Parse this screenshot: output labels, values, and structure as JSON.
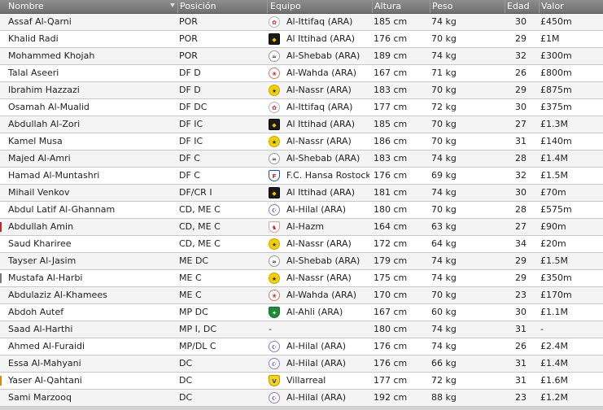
{
  "columns": {
    "name": "Nombre",
    "position": "Posición",
    "team": "Equipo",
    "height": "Altura",
    "weight": "Peso",
    "age": "Edad",
    "value": "Valor"
  },
  "club_badges": {
    "ittifaq": {
      "icon": "al-ittifaq-crest-icon",
      "bg": "#ffffff",
      "fg": "#d42020",
      "border": "#b5b5b5",
      "glyph": "✿",
      "shape": "round"
    },
    "ittihad": {
      "icon": "al-ittihad-crest-icon",
      "bg": "#1a1a1a",
      "fg": "#f2c200",
      "border": "#000000",
      "glyph": "◆",
      "shape": "square"
    },
    "shebab": {
      "icon": "al-shebab-crest-icon",
      "bg": "#ffffff",
      "fg": "#333333",
      "border": "#9a9a9a",
      "glyph": "≈",
      "shape": "round"
    },
    "wahda": {
      "icon": "al-wahda-crest-icon",
      "bg": "#ffffff",
      "fg": "#c0392b",
      "border": "#c97a7a",
      "glyph": "❀",
      "shape": "round"
    },
    "nassr": {
      "icon": "al-nassr-crest-icon",
      "bg": "#f5d000",
      "fg": "#1f3c88",
      "border": "#c9a800",
      "glyph": "★",
      "shape": "round"
    },
    "hansa": {
      "icon": "hansa-rostock-crest-icon",
      "bg": "#ffffff",
      "fg": "#c8102e",
      "border": "#1f4fa0",
      "glyph": "F",
      "shape": "shield"
    },
    "hilal": {
      "icon": "al-hilal-crest-icon",
      "bg": "#ffffff",
      "fg": "#5a3fa0",
      "border": "#8e7cc3",
      "glyph": "☪",
      "shape": "round"
    },
    "hazm": {
      "icon": "al-hazm-crest-icon",
      "bg": "#ffffff",
      "fg": "#d42020",
      "border": "#d9a0a0",
      "glyph": "♞",
      "shape": "shield"
    },
    "ahli": {
      "icon": "al-ahli-crest-icon",
      "bg": "#1f8a3a",
      "fg": "#ffffff",
      "border": "#146b2a",
      "glyph": "✦",
      "shape": "shield"
    },
    "villarreal": {
      "icon": "villarreal-crest-icon",
      "bg": "#f7d417",
      "fg": "#1d4fa0",
      "border": "#b59a00",
      "glyph": "V",
      "shape": "shield"
    }
  },
  "rows": [
    {
      "name": "Assaf Al-Qarni",
      "position": "POR",
      "team": "Al-Ittifaq (ARA)",
      "club": "ittifaq",
      "height": "185 cm",
      "weight": "74 kg",
      "age": "30",
      "value": "£450m",
      "marker": ""
    },
    {
      "name": "Khalid Radi",
      "position": "POR",
      "team": "Al Ittihad (ARA)",
      "club": "ittihad",
      "height": "176 cm",
      "weight": "70 kg",
      "age": "29",
      "value": "£1M",
      "marker": ""
    },
    {
      "name": "Mohammed Khojah",
      "position": "POR",
      "team": "Al-Shebab (ARA)",
      "club": "shebab",
      "height": "189 cm",
      "weight": "74 kg",
      "age": "32",
      "value": "£300m",
      "marker": ""
    },
    {
      "name": "Talal Aseeri",
      "position": "DF D",
      "team": "Al-Wahda (ARA)",
      "club": "wahda",
      "height": "167 cm",
      "weight": "71 kg",
      "age": "26",
      "value": "£800m",
      "marker": ""
    },
    {
      "name": "Ibrahim Hazzazi",
      "position": "DF D",
      "team": "Al-Nassr (ARA)",
      "club": "nassr",
      "height": "183 cm",
      "weight": "70 kg",
      "age": "29",
      "value": "£875m",
      "marker": ""
    },
    {
      "name": "Osamah Al-Mualid",
      "position": "DF DC",
      "team": "Al-Ittifaq (ARA)",
      "club": "ittifaq",
      "height": "177 cm",
      "weight": "72 kg",
      "age": "30",
      "value": "£375m",
      "marker": ""
    },
    {
      "name": "Abdullah Al-Zori",
      "position": "DF IC",
      "team": "Al Ittihad (ARA)",
      "club": "ittihad",
      "height": "185 cm",
      "weight": "70 kg",
      "age": "27",
      "value": "£1.3M",
      "marker": ""
    },
    {
      "name": "Kamel Musa",
      "position": "DF IC",
      "team": "Al-Nassr (ARA)",
      "club": "nassr",
      "height": "186 cm",
      "weight": "70 kg",
      "age": "31",
      "value": "£140m",
      "marker": ""
    },
    {
      "name": "Majed Al-Amri",
      "position": "DF C",
      "team": "Al-Shebab (ARA)",
      "club": "shebab",
      "height": "183 cm",
      "weight": "74 kg",
      "age": "28",
      "value": "£1.4M",
      "marker": ""
    },
    {
      "name": "Hamad Al-Muntashri",
      "position": "DF C",
      "team": "F.C. Hansa Rostock",
      "club": "hansa",
      "height": "176 cm",
      "weight": "69 kg",
      "age": "32",
      "value": "£1.5M",
      "marker": ""
    },
    {
      "name": "Mihail Venkov",
      "position": "DF/CR I",
      "team": "Al Ittihad (ARA)",
      "club": "ittihad",
      "height": "181 cm",
      "weight": "74 kg",
      "age": "30",
      "value": "£70m",
      "marker": ""
    },
    {
      "name": "Abdul Latif Al-Ghannam",
      "position": "CD, ME C",
      "team": "Al-Hilal (ARA)",
      "club": "hilal",
      "height": "180 cm",
      "weight": "70 kg",
      "age": "28",
      "value": "£575m",
      "marker": ""
    },
    {
      "name": "Abdullah Amin",
      "position": "CD, ME C",
      "team": "Al-Hazm",
      "club": "hazm",
      "height": "164 cm",
      "weight": "63 kg",
      "age": "27",
      "value": "£90m",
      "marker": "#cc2222"
    },
    {
      "name": "Saud Khariree",
      "position": "CD, ME C",
      "team": "Al-Nassr (ARA)",
      "club": "nassr",
      "height": "172 cm",
      "weight": "64 kg",
      "age": "34",
      "value": "£20m",
      "marker": ""
    },
    {
      "name": "Tayser Al-Jasim",
      "position": "ME DC",
      "team": "Al-Shebab (ARA)",
      "club": "shebab",
      "height": "179 cm",
      "weight": "74 kg",
      "age": "29",
      "value": "£1.5M",
      "marker": ""
    },
    {
      "name": "Mustafa Al-Harbi",
      "position": "ME C",
      "team": "Al-Nassr (ARA)",
      "club": "nassr",
      "height": "175 cm",
      "weight": "74 kg",
      "age": "29",
      "value": "£350m",
      "marker": "#777777"
    },
    {
      "name": "Abdulaziz Al-Khamees",
      "position": "ME C",
      "team": "Al-Wahda (ARA)",
      "club": "wahda",
      "height": "170 cm",
      "weight": "70 kg",
      "age": "23",
      "value": "£170m",
      "marker": ""
    },
    {
      "name": "Abdoh Autef",
      "position": "MP DC",
      "team": "Al-Ahli (ARA)",
      "club": "ahli",
      "height": "167 cm",
      "weight": "60 kg",
      "age": "30",
      "value": "£1.1M",
      "marker": ""
    },
    {
      "name": "Saad Al-Harthi",
      "position": "MP I, DC",
      "team": "-",
      "club": "",
      "height": "180 cm",
      "weight": "74 kg",
      "age": "31",
      "value": "-",
      "marker": ""
    },
    {
      "name": "Ahmed Al-Furaidi",
      "position": "MP/DL C",
      "team": "Al-Hilal (ARA)",
      "club": "hilal",
      "height": "176 cm",
      "weight": "74 kg",
      "age": "26",
      "value": "£2.4M",
      "marker": ""
    },
    {
      "name": "Essa Al-Mahyani",
      "position": "DC",
      "team": "Al-Hilal (ARA)",
      "club": "hilal",
      "height": "176 cm",
      "weight": "66 kg",
      "age": "31",
      "value": "£1.4M",
      "marker": ""
    },
    {
      "name": "Yaser Al-Qahtani",
      "position": "DC",
      "team": "Villarreal",
      "club": "villarreal",
      "height": "177 cm",
      "weight": "72 kg",
      "age": "31",
      "value": "£1.6M",
      "marker": "#e08a00"
    },
    {
      "name": "Sami Marzooq",
      "position": "DC",
      "team": "Al-Hilal (ARA)",
      "club": "hilal",
      "height": "192 cm",
      "weight": "88 kg",
      "age": "23",
      "value": "£1.2M",
      "marker": ""
    }
  ]
}
